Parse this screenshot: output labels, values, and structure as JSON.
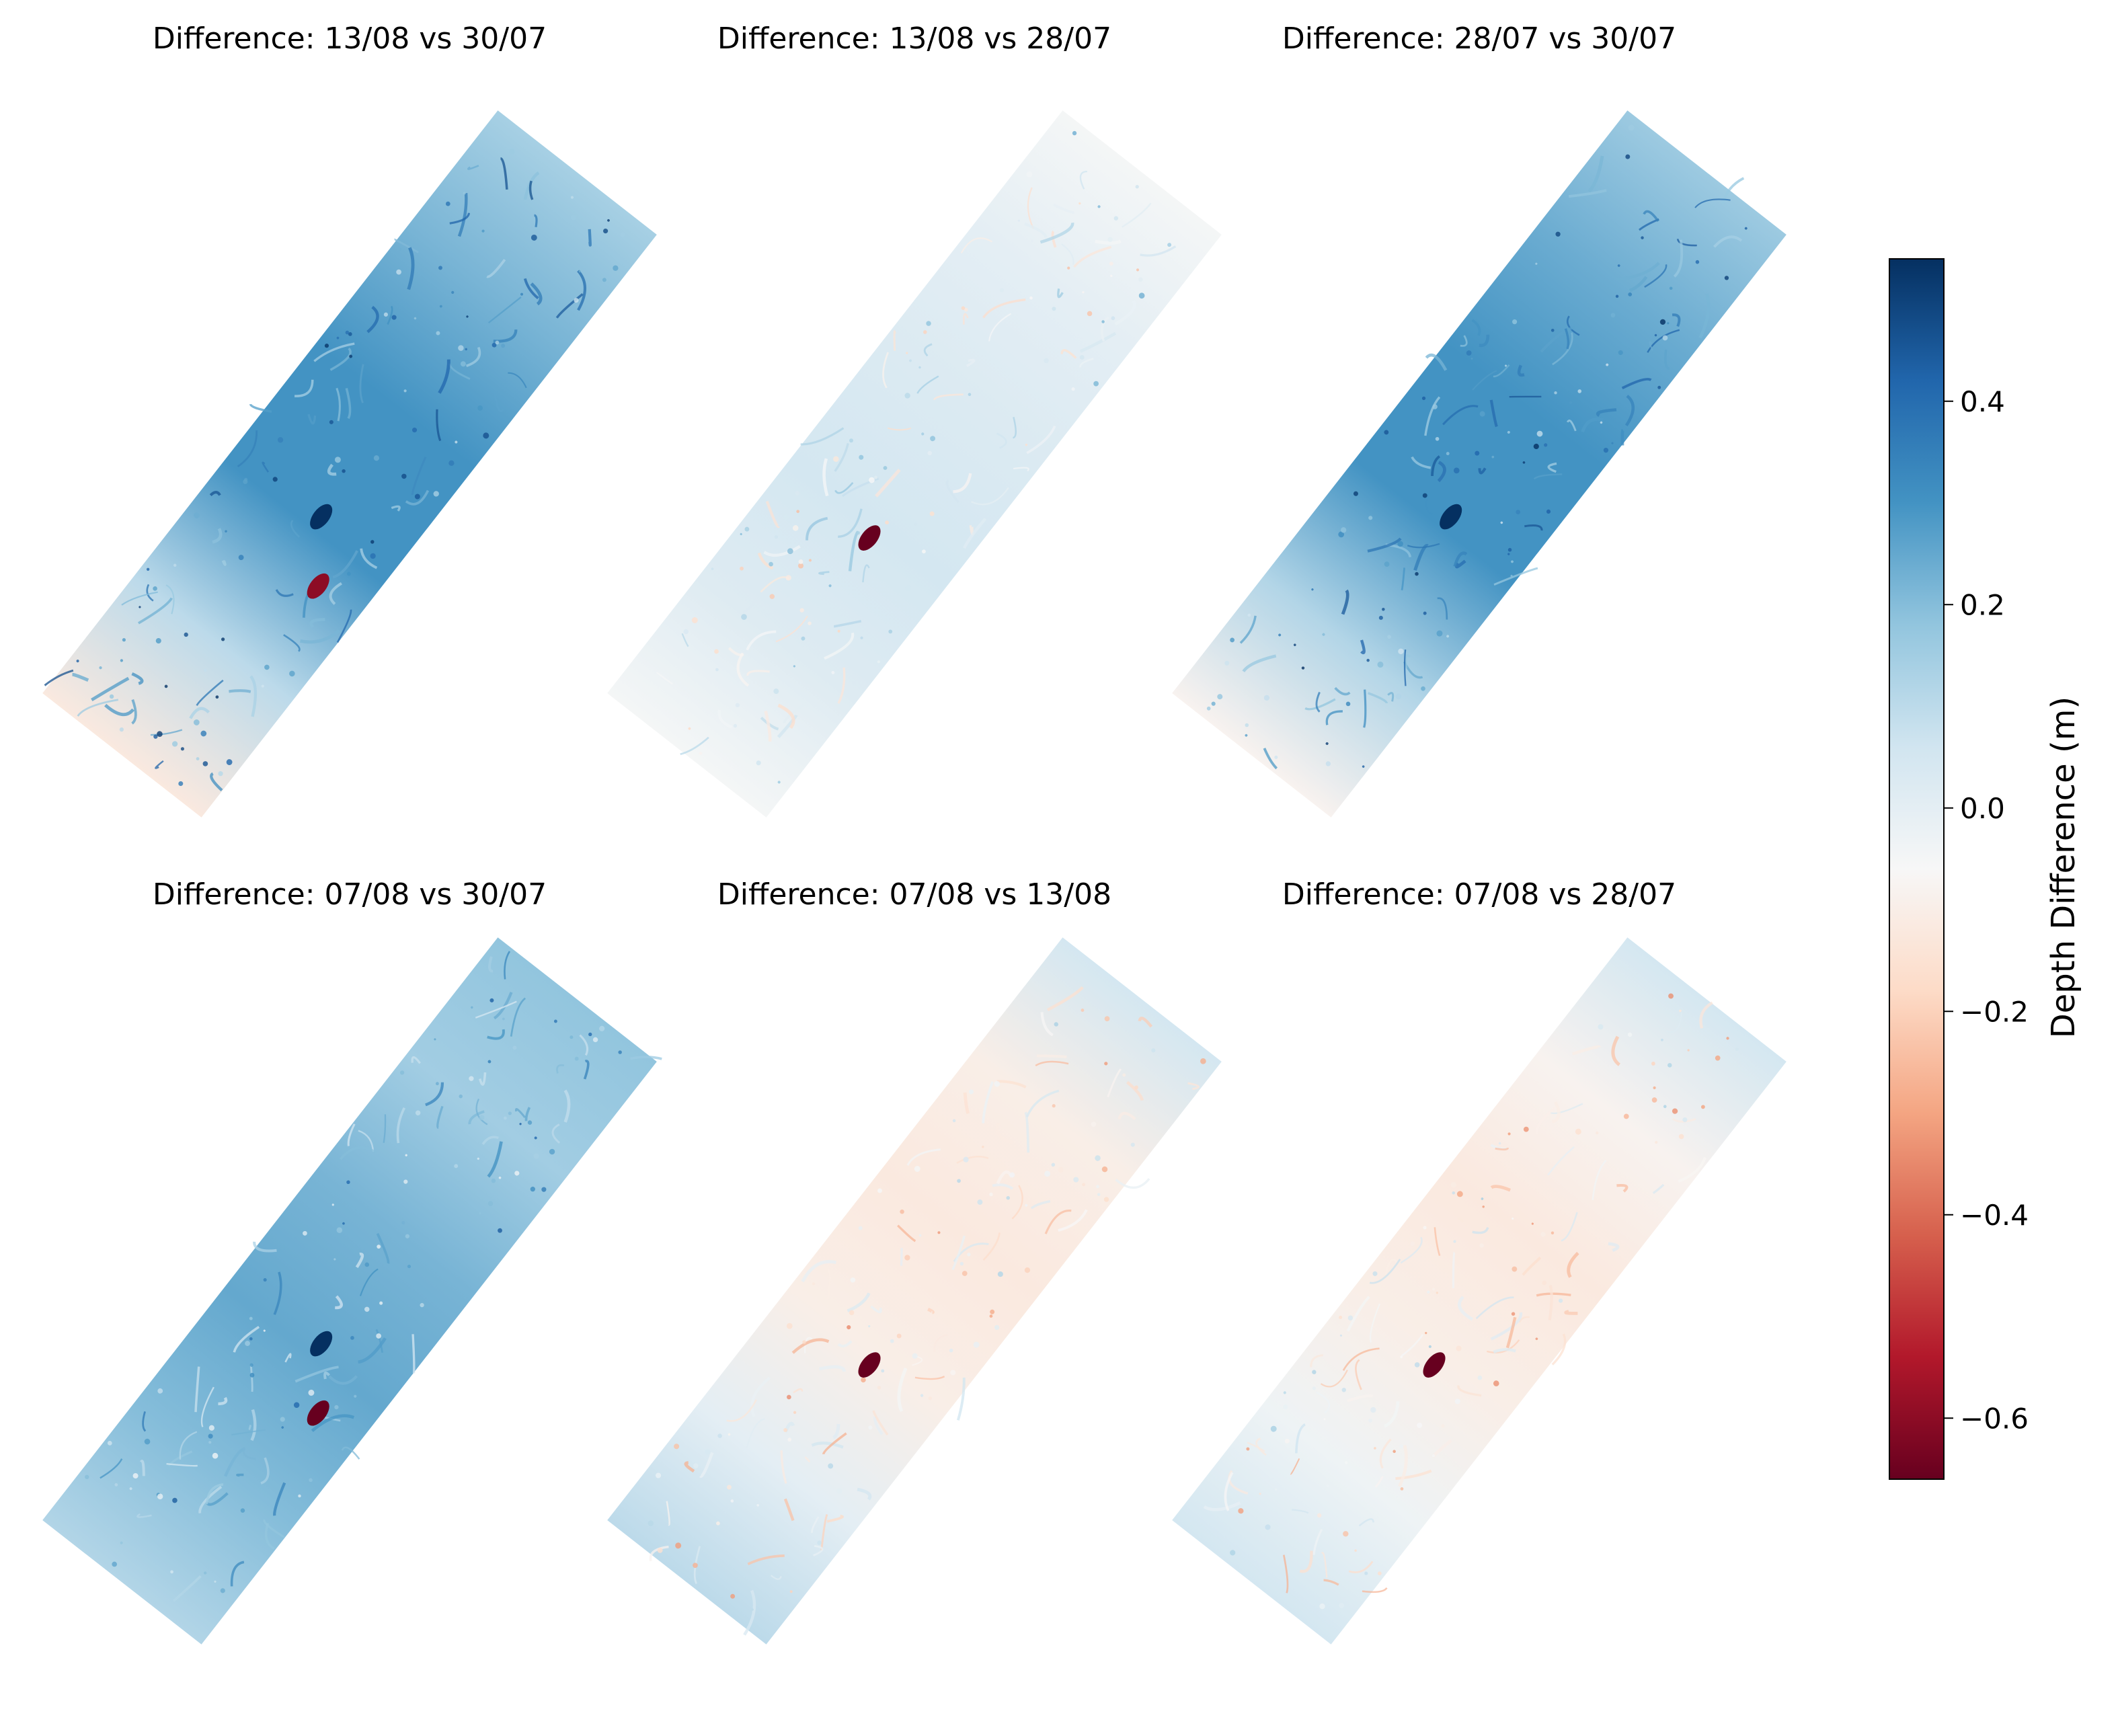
{
  "figure": {
    "colorbar": {
      "label": "Depth Difference (m)",
      "vmin": -0.66,
      "vmax": 0.54,
      "ticks": [
        0.4,
        0.2,
        0.0,
        -0.2,
        -0.4,
        -0.6
      ],
      "tick_labels": [
        "0.4",
        "0.2",
        "0.0",
        "−0.2",
        "−0.4",
        "−0.6"
      ],
      "colormap": "RdBu",
      "stops": [
        "#67001f",
        "#b2182b",
        "#d6604d",
        "#f4a582",
        "#fddbc7",
        "#f7f7f7",
        "#d1e5f0",
        "#92c5de",
        "#4393c3",
        "#2166ac",
        "#053061"
      ]
    }
  },
  "chart_data": [
    {
      "type": "heatmap",
      "title": "Difference: 13/08 vs 30/07",
      "shape": "rotated-strip",
      "dominant_value": 0.3,
      "gradient_values": [
        -0.12,
        0.1,
        0.3,
        0.3,
        0.22,
        0.14
      ],
      "colors": {
        "base": "#6aa9d3",
        "low_end": "#f6c9b3",
        "mid": "#3f88c2",
        "high_end": "#b6d4e8"
      },
      "features": [
        {
          "kind": "dark-blob",
          "value": 0.54
        },
        {
          "kind": "red-spot",
          "value": -0.6
        }
      ]
    },
    {
      "type": "heatmap",
      "title": "Difference: 13/08 vs 28/07",
      "shape": "rotated-strip",
      "dominant_value": 0.0,
      "gradient_values": [
        -0.05,
        0.02,
        0.05,
        0.03,
        0.0,
        -0.05
      ],
      "colors": {
        "base": "#f4f0ee",
        "low_end": "#f8e4da",
        "mid": "#eef2f6",
        "high_end": "#f9e6dc"
      },
      "features": [
        {
          "kind": "red-spot",
          "value": -0.66
        }
      ]
    },
    {
      "type": "heatmap",
      "title": "Difference: 28/07 vs 30/07",
      "shape": "rotated-strip",
      "dominant_value": 0.3,
      "gradient_values": [
        -0.08,
        0.12,
        0.3,
        0.3,
        0.24,
        0.16
      ],
      "colors": {
        "base": "#6aa9d3",
        "low_end": "#f6c9b3",
        "mid": "#3f88c2",
        "high_end": "#b6d4e8"
      },
      "features": [
        {
          "kind": "dark-blob",
          "value": 0.54
        }
      ]
    },
    {
      "type": "heatmap",
      "title": "Difference: 07/08 vs 30/07",
      "shape": "rotated-strip",
      "dominant_value": 0.2,
      "gradient_values": [
        0.12,
        0.2,
        0.25,
        0.22,
        0.15,
        0.18
      ],
      "colors": {
        "base": "#94c4e0",
        "low_end": "#cfe3f0",
        "mid": "#6aa9d3",
        "high_end": "#c4dcec"
      },
      "features": [
        {
          "kind": "dark-blob",
          "value": 0.54
        },
        {
          "kind": "red-spot",
          "value": -0.66
        }
      ]
    },
    {
      "type": "heatmap",
      "title": "Difference: 07/08 vs 13/08",
      "shape": "rotated-strip",
      "dominant_value": -0.1,
      "gradient_values": [
        0.1,
        0.0,
        -0.1,
        -0.12,
        -0.1,
        0.05
      ],
      "colors": {
        "base": "#f7cdb8",
        "low_end": "#dbe9f3",
        "mid": "#f4bda3",
        "high_end": "#d5e6f1"
      },
      "features": [
        {
          "kind": "red-spot",
          "value": -0.66
        }
      ]
    },
    {
      "type": "heatmap",
      "title": "Difference: 07/08 vs 28/07",
      "shape": "rotated-strip",
      "dominant_value": -0.1,
      "gradient_values": [
        0.05,
        -0.03,
        -0.1,
        -0.12,
        -0.08,
        0.05
      ],
      "colors": {
        "base": "#f7cdb8",
        "low_end": "#e6eff6",
        "mid": "#f4bda3",
        "high_end": "#dbe9f3"
      },
      "features": [
        {
          "kind": "red-spot",
          "value": -0.66
        }
      ]
    }
  ]
}
